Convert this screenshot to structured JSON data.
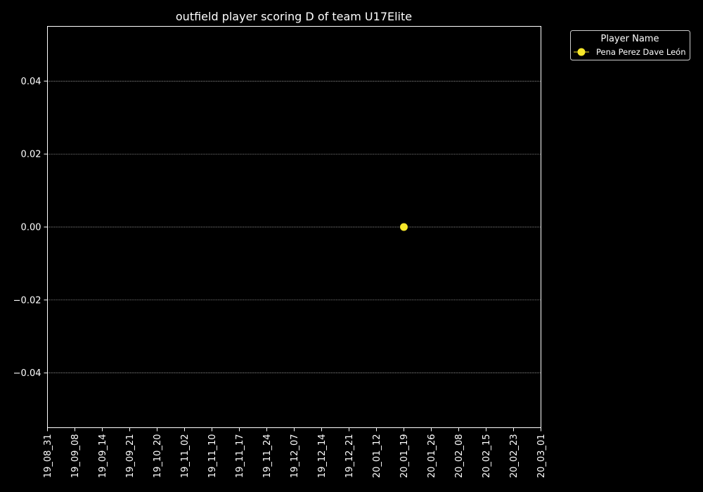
{
  "chart_data": {
    "type": "scatter",
    "title": "outfield player scoring D of team U17Elite",
    "xlabel": "",
    "ylabel": "",
    "categories": [
      "19_08_31",
      "19_09_08",
      "19_09_14",
      "19_09_21",
      "19_10_20",
      "19_11_02",
      "19_11_10",
      "19_11_17",
      "19_11_24",
      "19_12_07",
      "19_12_14",
      "19_12_21",
      "20_01_12",
      "20_01_19",
      "20_01_26",
      "20_02_08",
      "20_02_15",
      "20_02_23",
      "20_03_01"
    ],
    "ylim": [
      -0.055,
      0.055
    ],
    "yticks": [
      "0.04",
      "0.02",
      "0.00",
      "−0.02",
      "−0.04"
    ],
    "ytick_values": [
      0.04,
      0.02,
      0.0,
      -0.02,
      -0.04
    ],
    "grid": true,
    "legend": {
      "title": "Player Name",
      "placement": "outside-top-right"
    },
    "series": [
      {
        "name": "Pena Perez Dave León",
        "color": "#f7e72a",
        "points": [
          {
            "x": "20_01_19",
            "y": 0.0
          }
        ]
      }
    ]
  }
}
